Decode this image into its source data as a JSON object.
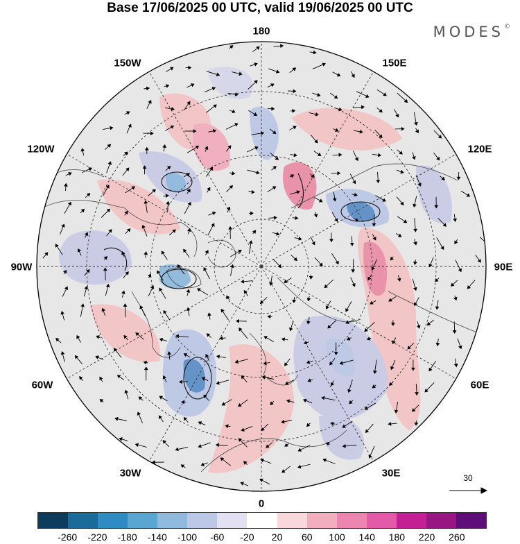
{
  "title": "Base 17/06/2025 00 UTC, valid 19/06/2025 00 UTC",
  "logo": "MODES",
  "logo_mark": "©",
  "longitude_labels": {
    "top": "180",
    "bottom": "0",
    "left": "90W",
    "right": "90E",
    "upper_left_outer": "150W",
    "upper_right_outer": "150E",
    "upper_left_inner": "120W",
    "upper_right_inner": "120E",
    "lower_left_inner": "60W",
    "lower_right_inner": "60E",
    "lower_left_outer": "30W",
    "lower_right_outer": "30E"
  },
  "vector_reference": {
    "label": "30"
  },
  "colorbar": {
    "colors": [
      "#0c3d5e",
      "#1a6a9a",
      "#2f8cc2",
      "#5aa6d2",
      "#8fb9dd",
      "#bcc8e6",
      "#e2e0f1",
      "#ffffff",
      "#f8d8da",
      "#f2aebd",
      "#ec86b0",
      "#e25aa8",
      "#c51f96",
      "#981682",
      "#5e0e78"
    ],
    "ticks": [
      "-260",
      "-220",
      "-180",
      "-140",
      "-100",
      "-60",
      "-20",
      "20",
      "60",
      "100",
      "140",
      "180",
      "220",
      "260"
    ]
  },
  "map_colors": {
    "background": "#e7e7e7",
    "ocean": "#ffffff",
    "positive": "#f3c4c6",
    "strong_positive": "#e98fa6",
    "negative": "#c9cbe5",
    "strong_negative": "#5c8fc6"
  }
}
